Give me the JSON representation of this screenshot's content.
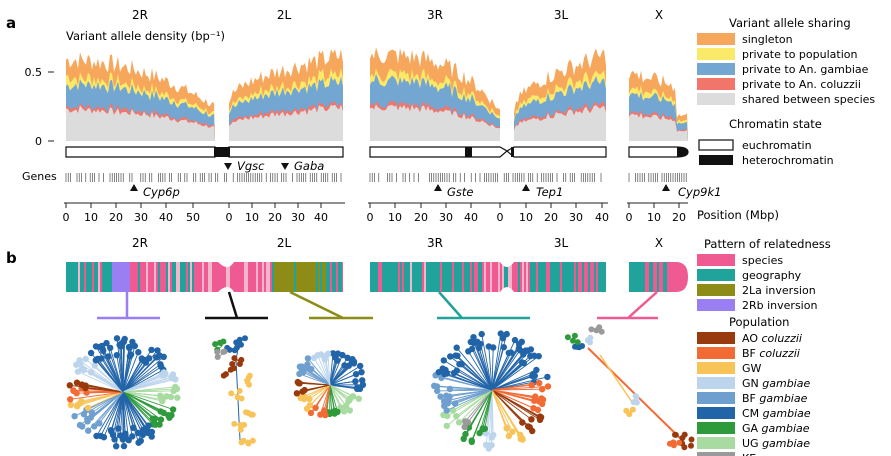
{
  "panel_a": {
    "label": "a",
    "arms": [
      "2R",
      "2L",
      "3R",
      "3L",
      "X"
    ],
    "y_axis_title": "Variant allele density (bp⁻¹)",
    "y_ticks": [
      "0.5",
      "0"
    ],
    "legend_title": "Variant allele sharing",
    "legend": [
      {
        "label": "singleton",
        "color": "#f6a75b"
      },
      {
        "label": "private to population",
        "color": "#fbe96a"
      },
      {
        "label": "private to An. gambiae",
        "color": "#73a6d1"
      },
      {
        "label": "private to An. coluzzii",
        "color": "#f2756b"
      },
      {
        "label": "shared between species",
        "color": "#dcdcdc"
      }
    ],
    "chromatin_title": "Chromatin state",
    "chromatin_legend": [
      "euchromatin",
      "heterochromatin"
    ],
    "genes_label": "Genes",
    "genes_above": [
      "Vgsc",
      "Gaba"
    ],
    "genes_below": [
      "Cyp6p",
      "Gste",
      "Tep1",
      "Cyp9k1"
    ],
    "x_ticks_2": [
      "0",
      "10",
      "20",
      "30",
      "40",
      "50",
      "0",
      "10",
      "20",
      "30",
      "40"
    ],
    "x_ticks_3": [
      "0",
      "10",
      "20",
      "30",
      "40",
      "0",
      "10",
      "20",
      "30",
      "40"
    ],
    "x_ticks_X": [
      "0",
      "10",
      "20"
    ],
    "x_axis_title": "Position (Mbp)"
  },
  "panel_b": {
    "label": "b",
    "arms": [
      "2R",
      "2L",
      "3R",
      "3L",
      "X"
    ],
    "pattern_title": "Pattern of relatedness",
    "pattern_legend": [
      {
        "label": "species",
        "color": "#f05a92"
      },
      {
        "label": "geography",
        "color": "#1fa39a"
      },
      {
        "label": "2La inversion",
        "color": "#8c8c16"
      },
      {
        "label": "2Rb inversion",
        "color": "#9a7ff2"
      }
    ],
    "population_title": "Population",
    "population_legend": [
      {
        "code": "AO",
        "species": "coluzzii",
        "color": "#983a0d"
      },
      {
        "code": "BF",
        "species": "coluzzii",
        "color": "#f26a34"
      },
      {
        "code": "GW",
        "species": "",
        "color": "#f8c45a"
      },
      {
        "code": "GN",
        "species": "gambiae",
        "color": "#bcd4ec"
      },
      {
        "code": "BF",
        "species": "gambiae",
        "color": "#6e9fcf"
      },
      {
        "code": "CM",
        "species": "gambiae",
        "color": "#2264a8"
      },
      {
        "code": "GA",
        "species": "gambiae",
        "color": "#2e9a3c"
      },
      {
        "code": "UG",
        "species": "gambiae",
        "color": "#a7dba0"
      },
      {
        "code": "KE",
        "species": "",
        "color": "#9a9a9a"
      }
    ]
  }
}
